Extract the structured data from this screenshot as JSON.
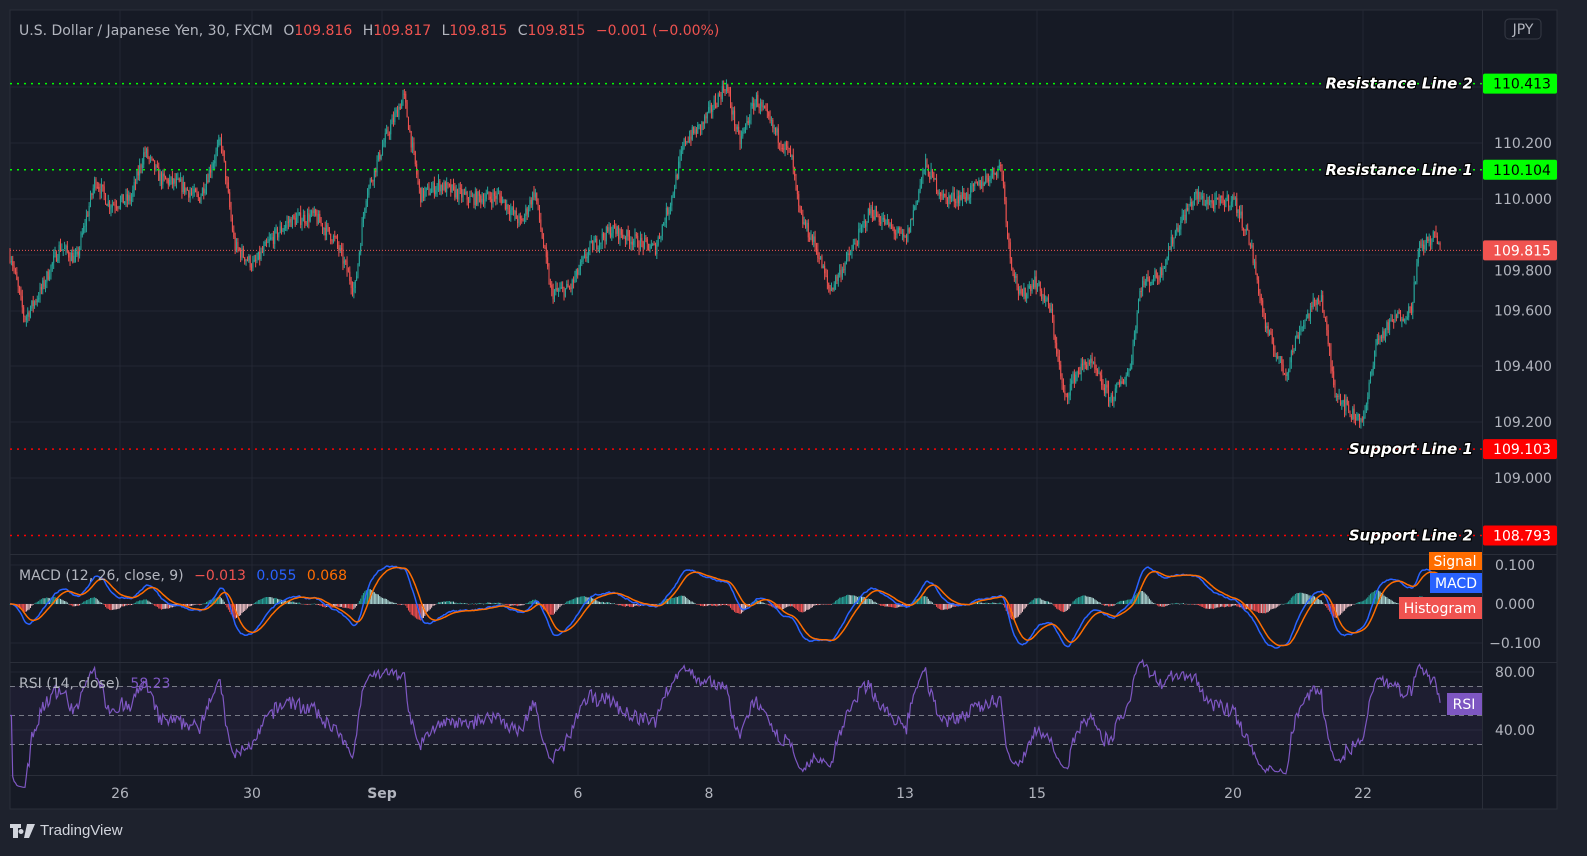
{
  "header": {
    "symbol_title": "U.S. Dollar / Japanese Yen, 30, FXCM",
    "open_label": "O",
    "open": "109.816",
    "high_label": "H",
    "high": "109.817",
    "low_label": "L",
    "low": "109.815",
    "close_label": "C",
    "close": "109.815",
    "change": "−0.001 (−0.00%)"
  },
  "currency_button": "JPY",
  "brand": "TradingView",
  "colors": {
    "up": "#26a69a",
    "down": "#ef5350",
    "resistance": "#00ff00",
    "support": "#ff0000",
    "macd": "#2962ff",
    "signal": "#ff6d00",
    "rsi": "#7e57c2"
  },
  "chart_data": {
    "type": "candlestick",
    "interval": "30",
    "ylim": [
      108.6,
      110.55
    ],
    "y_ticks": [
      "110.200",
      "110.000",
      "109.800",
      "109.600",
      "109.400",
      "109.200",
      "109.000"
    ],
    "x_ticks": [
      "26",
      "30",
      "Sep",
      "6",
      "8",
      "13",
      "15",
      "20",
      "22"
    ],
    "last_price": {
      "value": 109.815,
      "label": "109.815"
    },
    "close_path": [
      [
        "08-24 08:00",
        109.8
      ],
      [
        "08-24 13:00",
        109.57
      ],
      [
        "08-24 19:00",
        109.67
      ],
      [
        "08-25 02:00",
        109.83
      ],
      [
        "08-25 08:00",
        109.78
      ],
      [
        "08-25 15:00",
        110.07
      ],
      [
        "08-25 20:00",
        109.98
      ],
      [
        "08-26 04:00",
        110.0
      ],
      [
        "08-26 09:00",
        110.17
      ],
      [
        "08-26 15:00",
        110.07
      ],
      [
        "08-26 22:00",
        110.05
      ],
      [
        "08-27 05:00",
        110.0
      ],
      [
        "08-27 13:00",
        110.21
      ],
      [
        "08-27 18:00",
        109.83
      ],
      [
        "08-30 01:00",
        109.76
      ],
      [
        "08-30 07:00",
        109.85
      ],
      [
        "08-30 14:00",
        109.92
      ],
      [
        "08-30 23:00",
        109.94
      ],
      [
        "08-31 07:00",
        109.85
      ],
      [
        "08-31 14:00",
        109.67
      ],
      [
        "08-31 18:00",
        110.01
      ],
      [
        "09-01 01:00",
        110.21
      ],
      [
        "09-01 08:00",
        110.37
      ],
      [
        "09-01 14:00",
        110.01
      ],
      [
        "09-01 21:00",
        110.05
      ],
      [
        "09-02 08:00",
        110.0
      ],
      [
        "09-02 19:00",
        110.01
      ],
      [
        "09-03 03:00",
        109.91
      ],
      [
        "09-03 08:00",
        110.03
      ],
      [
        "09-03 14:00",
        109.66
      ],
      [
        "09-03 21:00",
        109.68
      ],
      [
        "09-06 04:00",
        109.82
      ],
      [
        "09-06 12:00",
        109.89
      ],
      [
        "09-06 23:00",
        109.84
      ],
      [
        "09-07 04:00",
        109.82
      ],
      [
        "09-07 10:00",
        110.0
      ],
      [
        "09-07 15:00",
        110.21
      ],
      [
        "09-07 21:00",
        110.26
      ],
      [
        "09-08 06:00",
        110.41
      ],
      [
        "09-08 11:00",
        110.2
      ],
      [
        "09-08 17:00",
        110.36
      ],
      [
        "09-09 00:00",
        110.24
      ],
      [
        "09-09 06:00",
        110.15
      ],
      [
        "09-09 09:00",
        109.94
      ],
      [
        "09-09 15:00",
        109.83
      ],
      [
        "09-09 20:00",
        109.67
      ],
      [
        "09-10 04:00",
        109.81
      ],
      [
        "09-10 11:00",
        109.96
      ],
      [
        "09-10 18:00",
        109.9
      ],
      [
        "09-13 00:00",
        109.85
      ],
      [
        "09-13 07:00",
        110.12
      ],
      [
        "09-13 14:00",
        110.0
      ],
      [
        "09-13 22:00",
        110.01
      ],
      [
        "09-14 05:00",
        110.07
      ],
      [
        "09-14 11:00",
        110.12
      ],
      [
        "09-14 14:00",
        109.8
      ],
      [
        "09-14 18:00",
        109.64
      ],
      [
        "09-14 23:00",
        109.71
      ],
      [
        "09-15 05:00",
        109.6
      ],
      [
        "09-15 10:00",
        109.28
      ],
      [
        "09-15 14:00",
        109.37
      ],
      [
        "09-15 19:00",
        109.42
      ],
      [
        "09-16 03:00",
        109.28
      ],
      [
        "09-16 10:00",
        109.39
      ],
      [
        "09-16 14:00",
        109.69
      ],
      [
        "09-16 21:00",
        109.73
      ],
      [
        "09-17 03:00",
        109.89
      ],
      [
        "09-17 10:00",
        110.01
      ],
      [
        "09-17 17:00",
        109.98
      ],
      [
        "09-20 00:00",
        110.0
      ],
      [
        "09-20 06:00",
        109.85
      ],
      [
        "09-20 12:00",
        109.53
      ],
      [
        "09-20 19:00",
        109.37
      ],
      [
        "09-21 00:00",
        109.53
      ],
      [
        "09-21 08:00",
        109.66
      ],
      [
        "09-21 13:00",
        109.32
      ],
      [
        "09-21 19:00",
        109.23
      ],
      [
        "09-22 00:00",
        109.21
      ],
      [
        "09-22 04:00",
        109.48
      ],
      [
        "09-22 11:00",
        109.57
      ],
      [
        "09-22 17:00",
        109.6
      ],
      [
        "09-22 20:00",
        109.82
      ],
      [
        "09-23 02:00",
        109.87
      ],
      [
        "09-23 04:00",
        109.815
      ]
    ],
    "horizontal_lines": [
      {
        "name": "Resistance Line 2",
        "value": 110.413,
        "label": "110.413",
        "kind": "resistance"
      },
      {
        "name": "Resistance Line 1",
        "value": 110.104,
        "label": "110.104",
        "kind": "resistance"
      },
      {
        "name": "Support Line 1",
        "value": 109.103,
        "label": "109.103",
        "kind": "support"
      },
      {
        "name": "Support Line 2",
        "value": 108.793,
        "label": "108.793",
        "kind": "support"
      }
    ],
    "macd": {
      "title": "MACD (12, 26, close, 9)",
      "histogram": "−0.013",
      "macd": "0.055",
      "signal": "0.068",
      "y_ticks": [
        "0.100",
        "0.000",
        "−0.100"
      ],
      "tags": {
        "signal": "Signal",
        "macd": "MACD",
        "histogram": "Histogram"
      }
    },
    "rsi": {
      "title": "RSI (14, close)",
      "value": "58.23",
      "bands": [
        70,
        50,
        30
      ],
      "y_ticks": [
        "80.00",
        "40.00"
      ],
      "tag": "RSI"
    }
  }
}
